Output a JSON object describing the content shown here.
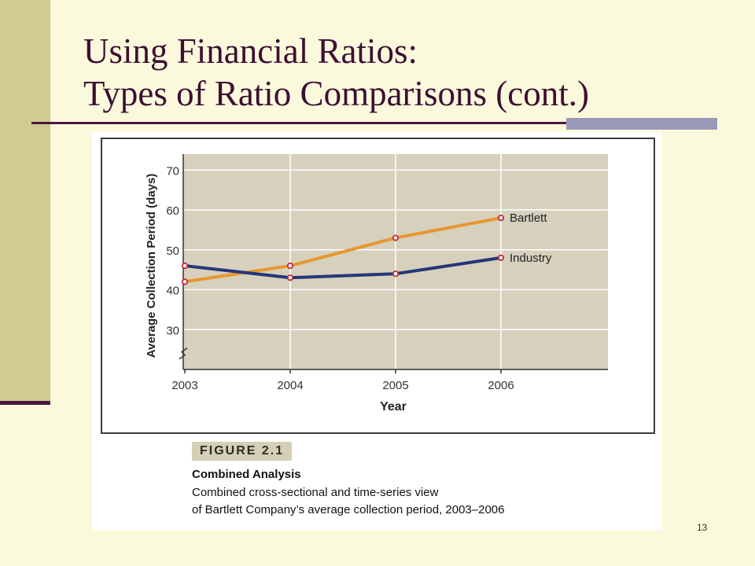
{
  "slide": {
    "title_line1": "Using Financial Ratios:",
    "title_line2": "Types of Ratio Comparisons (cont.)",
    "page_number": "13"
  },
  "figure": {
    "label": "FIGURE 2.1",
    "caption_title": "Combined Analysis",
    "caption_line1": "Combined cross-sectional and time-series view",
    "caption_line2": "of Bartlett Company’s average collection period, 2003–2006"
  },
  "colors": {
    "plot_background": "#d6d0bd",
    "bartlett": "#e8962e",
    "industry": "#26367a",
    "marker": "#c0283a"
  },
  "chart_data": {
    "type": "line",
    "categories": [
      "2003",
      "2004",
      "2005",
      "2006"
    ],
    "series": [
      {
        "name": "Bartlett",
        "values": [
          42,
          46,
          53,
          58
        ]
      },
      {
        "name": "Industry",
        "values": [
          46,
          43,
          44,
          48
        ]
      }
    ],
    "title": "",
    "xlabel": "Year",
    "ylabel": "Average Collection Period (days)",
    "yticks": [
      30,
      40,
      50,
      60,
      70
    ],
    "ylim": [
      20,
      74
    ],
    "axis_break": true,
    "grid": true,
    "legend": "labels at line ends"
  }
}
